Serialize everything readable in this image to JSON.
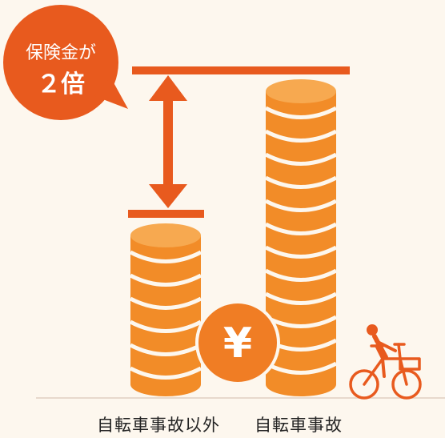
{
  "badge": {
    "line1": "保険金が",
    "line2": "２倍"
  },
  "coin_symbol": "¥",
  "labels": {
    "left": "自転車事故以外",
    "right": "自転車事故"
  },
  "comparison": {
    "ratio": 2
  },
  "colors": {
    "background": "#fdf7ee",
    "coin_fill": "#f28c28",
    "coin_band": "#f7a950",
    "accent": "#e85a1e",
    "yen_coin": "#f07d24",
    "bicycle": "#e85a1e"
  },
  "icons": [
    "yen-coin-icon",
    "bicycle-rider-icon",
    "double-arrow-icon"
  ]
}
